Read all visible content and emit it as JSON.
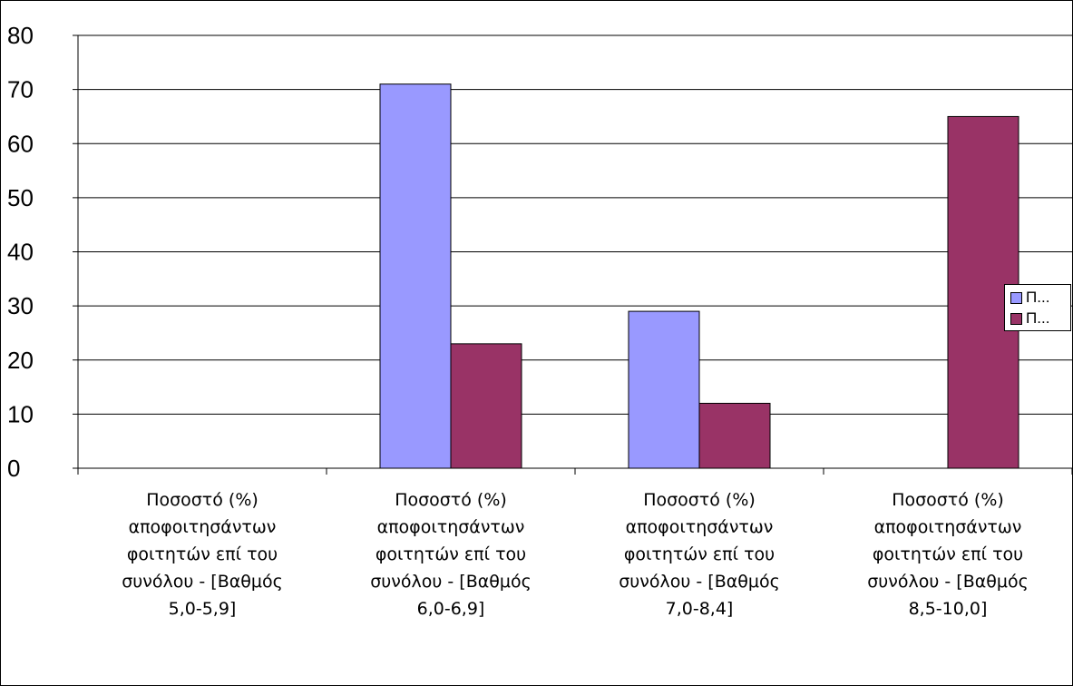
{
  "chart_data": {
    "type": "bar",
    "categories": [
      "Ποσοστό (%) αποφοιτησάντων φοιτητών επί του συνόλου - [Βαθμός 5,0-5,9]",
      "Ποσοστό (%) αποφοιτησάντων φοιτητών επί του συνόλου - [Βαθμός 6,0-6,9]",
      "Ποσοστό (%) αποφοιτησάντων φοιτητών επί του συνόλου - [Βαθμός 7,0-8,4]",
      "Ποσοστό (%) αποφοιτησάντων φοιτητών επί του συνόλου - [Βαθμός 8,5-10,0]"
    ],
    "category_lines": [
      [
        "Ποσοστό (%)",
        "αποφοιτησάντων",
        "φοιτητών επί του",
        "συνόλου - [Βαθμός",
        "5,0-5,9]"
      ],
      [
        "Ποσοστό (%)",
        "αποφοιτησάντων",
        "φοιτητών επί του",
        "συνόλου - [Βαθμός",
        "6,0-6,9]"
      ],
      [
        "Ποσοστό (%)",
        "αποφοιτησάντων",
        "φοιτητών επί του",
        "συνόλου - [Βαθμός",
        "7,0-8,4]"
      ],
      [
        "Ποσοστό (%)",
        "αποφοιτησάντων",
        "φοιτητών επί του",
        "συνόλου - [Βαθμός",
        "8,5-10,0]"
      ]
    ],
    "series": [
      {
        "name": "Π...",
        "color": "#9999ff",
        "values": [
          0,
          71,
          29,
          0
        ]
      },
      {
        "name": "Π...",
        "color": "#993366",
        "values": [
          0,
          23,
          12,
          65
        ]
      }
    ],
    "ylim": [
      0,
      80
    ],
    "yticks": [
      0,
      10,
      20,
      30,
      40,
      50,
      60,
      70,
      80
    ],
    "grid": true,
    "legend_position": "right"
  }
}
